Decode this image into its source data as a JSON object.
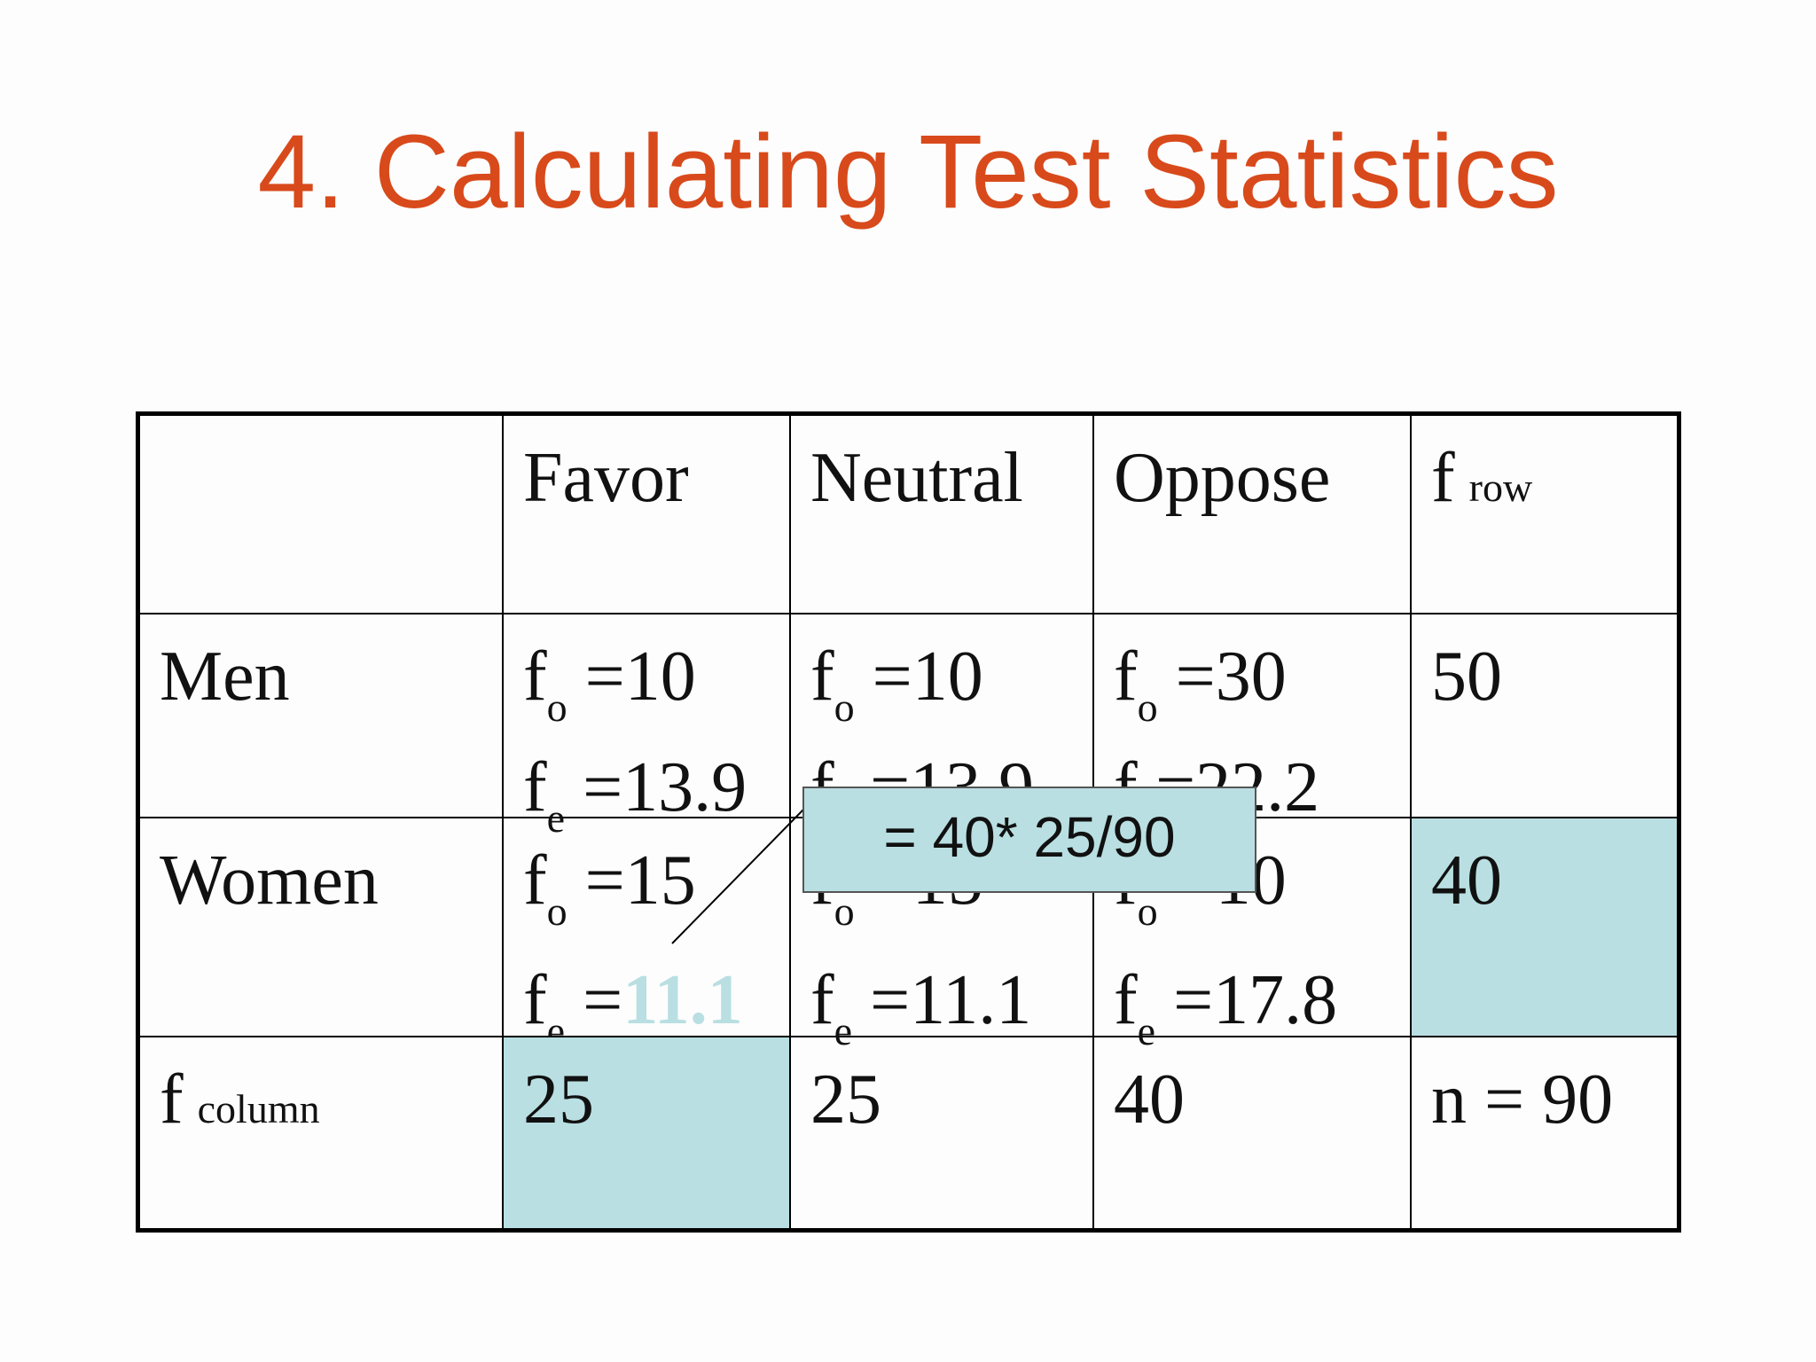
{
  "slide": {
    "title": "4. Calculating Test Statistics"
  },
  "table": {
    "header": {
      "favor": "Favor",
      "neutral": "Neutral",
      "oppose": "Oppose",
      "row_total": {
        "main": "f",
        "sub": "row"
      }
    },
    "rows": [
      {
        "label": "Men",
        "favor": {
          "fo_label": "f",
          "fo_sub": "o",
          "fo_value": "=10",
          "fe_label": "f",
          "fe_sub": "e",
          "fe_value": "=13.9"
        },
        "neutral": {
          "fo_label": "f",
          "fo_sub": "o",
          "fo_value": "=10",
          "fe_label": "f",
          "fe_sub": "e",
          "fe_value": "=13.9"
        },
        "oppose": {
          "fo_label": "f",
          "fo_sub": "o",
          "fo_value": "=30",
          "fe_label": "f",
          "fe_sub": "e",
          "fe_value": "=22.2"
        },
        "total": "50"
      },
      {
        "label": "Women",
        "favor": {
          "fo_label": "f",
          "fo_sub": "o",
          "fo_value": "=15",
          "fe_label": "f",
          "fe_sub": "e",
          "fe_eq": "=",
          "fe_value": "11.1"
        },
        "neutral": {
          "fo_label": "f",
          "fo_sub": "o",
          "fo_value": "=15",
          "fe_label": "f",
          "fe_sub": "e",
          "fe_value": "=11.1"
        },
        "oppose": {
          "fo_label": "f",
          "fo_sub": "o",
          "fo_value": "=10",
          "fe_label": "f",
          "fe_sub": "e",
          "fe_value": "=17.8"
        },
        "total": "40"
      }
    ],
    "footer": {
      "label": {
        "main": "f",
        "sub": "column"
      },
      "favor": "25",
      "neutral": "25",
      "oppose": "40",
      "total": "n = 90"
    }
  },
  "callout": {
    "text": "= 40* 25/90"
  },
  "colors": {
    "title": "#d84a1b",
    "highlight": "#b9dfe2",
    "border": "#000000"
  }
}
